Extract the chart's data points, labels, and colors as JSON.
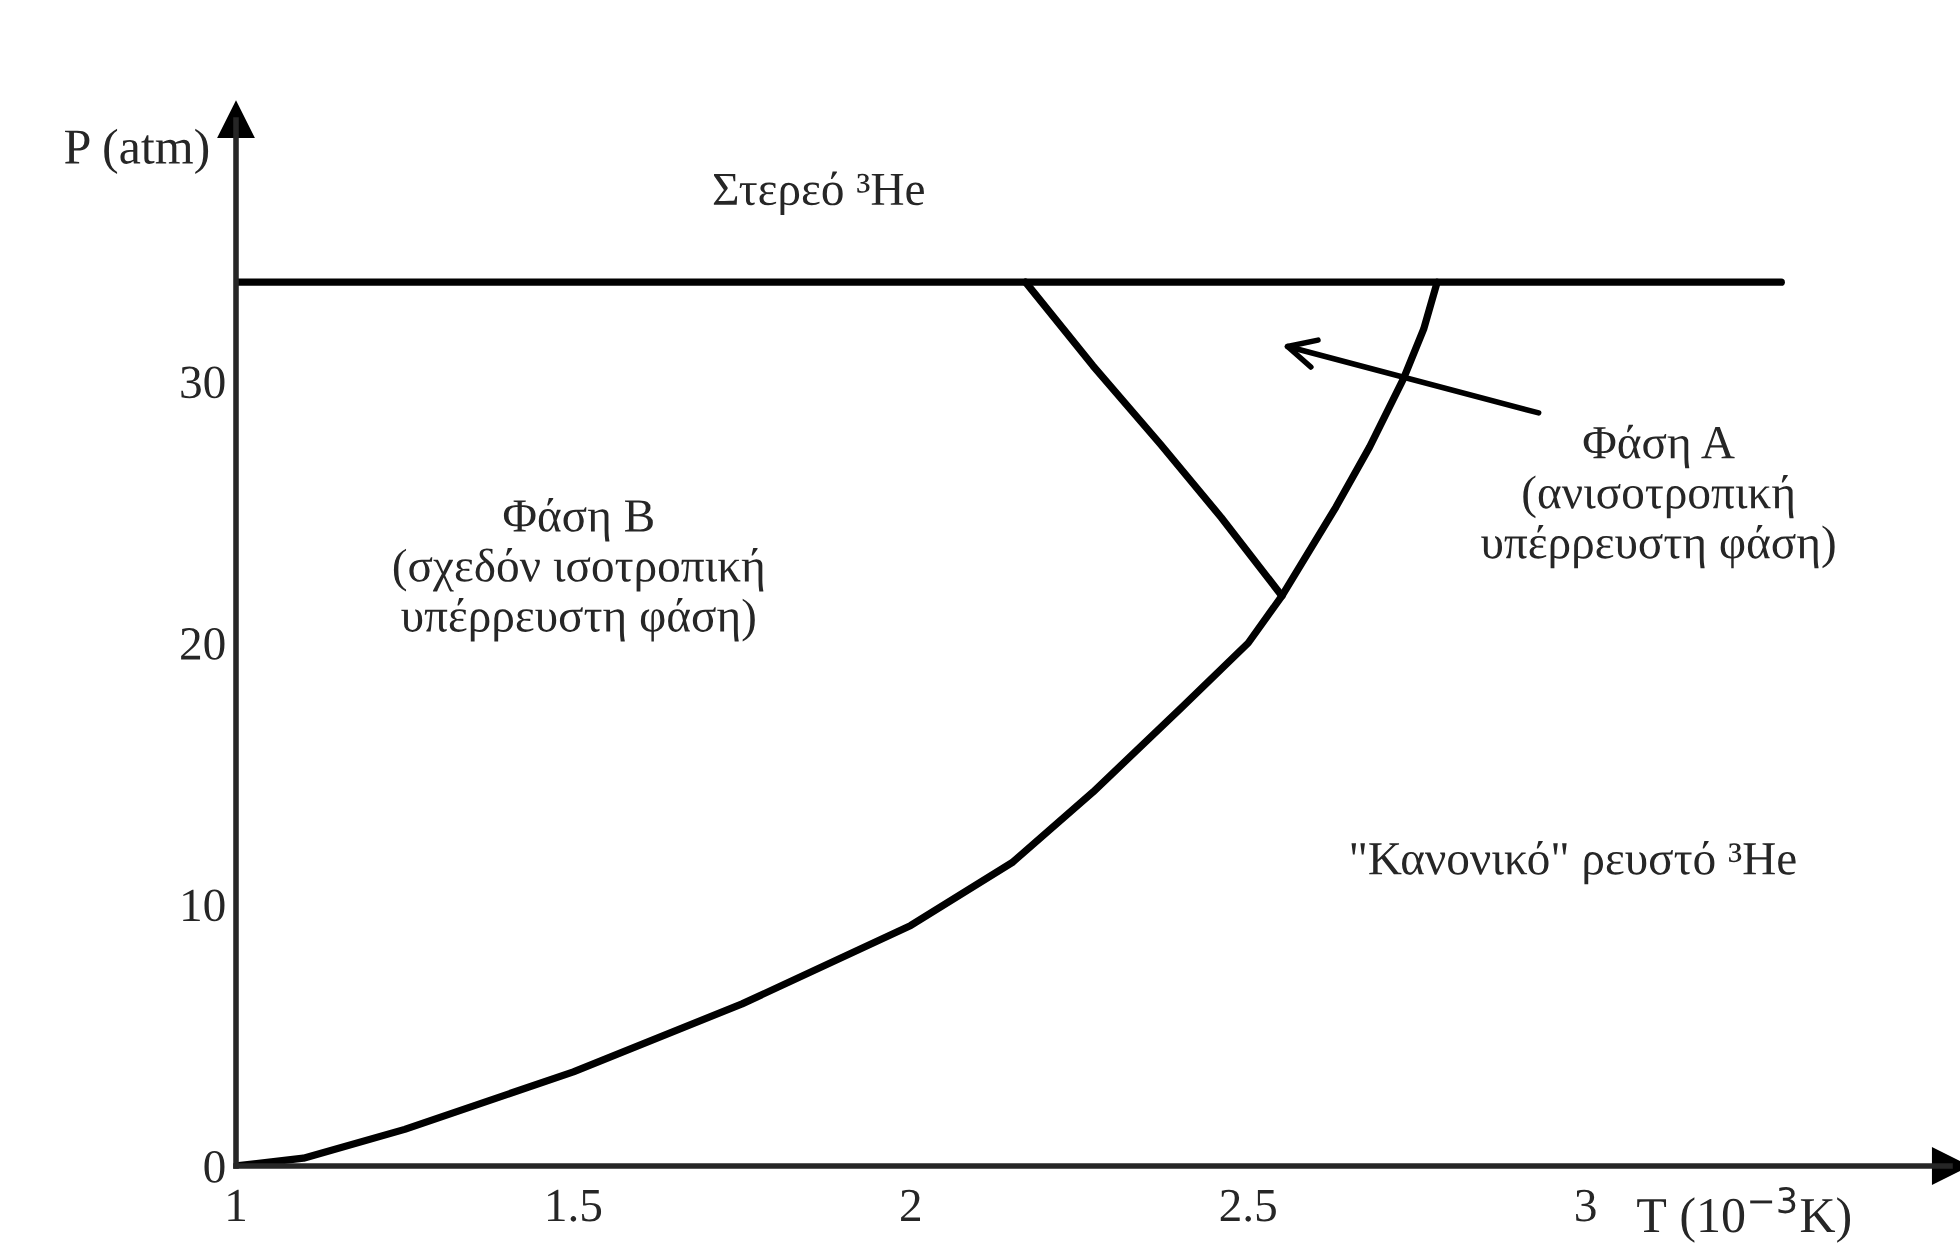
{
  "chart_data": {
    "type": "line",
    "xlabel": "T (10$^{−3}$K)",
    "ylabel": "P (atm)",
    "xlim": [
      1,
      3.54
    ],
    "ylim": [
      0,
      40
    ],
    "xticks": [
      1,
      1.5,
      2,
      2.5,
      3
    ],
    "yticks": [
      0,
      10,
      20,
      30
    ],
    "grid": false,
    "legend": false,
    "marker": "none",
    "line_style": "solid",
    "series": [
      {
        "color": "#000000",
        "x": [
          1,
          3.29
        ],
        "values": [
          33.8,
          33.8
        ]
      },
      {
        "color": "#000000",
        "x": [
          2.17,
          2.27,
          2.37,
          2.46,
          2.55
        ],
        "values": [
          33.8,
          30.6,
          27.6,
          24.8,
          21.8
        ]
      },
      {
        "color": "#000000",
        "x": [
          1,
          1.1,
          1.25,
          1.5,
          1.75,
          2,
          2.15,
          2.27,
          2.4,
          2.5,
          2.55,
          2.63,
          2.68,
          2.73,
          2.76,
          2.78
        ],
        "values": [
          0,
          0.3,
          1.4,
          3.6,
          6.2,
          9.2,
          11.6,
          14.3,
          17.5,
          20.0,
          21.8,
          25.2,
          27.5,
          30.1,
          32.0,
          33.8
        ]
      }
    ],
    "annotations": [
      "Στερεό ³He",
      "Φάση B\n(σχεδόν ισοτροπική\nυπέρρευστη φάση)",
      "Φάση A\n(ανισοτροπική\nυπέρρευστη φάση)",
      "\"Κανονικό\" ρευστό ³He"
    ]
  }
}
